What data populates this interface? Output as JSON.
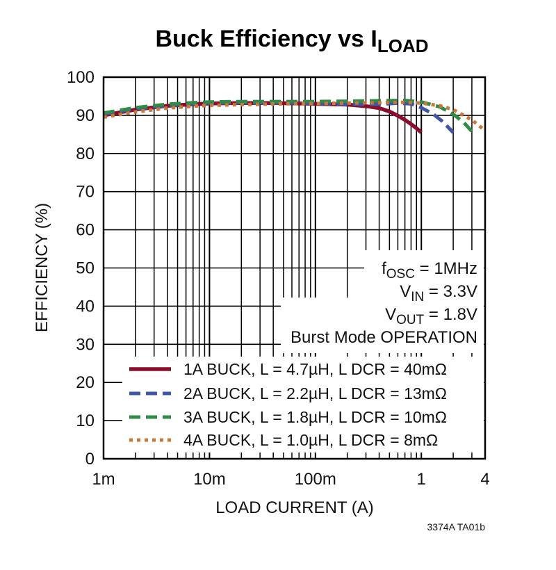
{
  "chart_data": {
    "type": "line",
    "title_main": "Buck Efficiency vs I",
    "title_sub": "LOAD",
    "xlabel": "LOAD CURRENT (A)",
    "ylabel": "EFFICIENCY (%)",
    "x_scale": "log",
    "xlim": [
      0.001,
      4
    ],
    "ylim": [
      0,
      100
    ],
    "grid": true,
    "x_ticks": [
      {
        "value": 0.001,
        "label": "1m"
      },
      {
        "value": 0.01,
        "label": "10m"
      },
      {
        "value": 0.1,
        "label": "100m"
      },
      {
        "value": 1,
        "label": "1"
      },
      {
        "value": 4,
        "label": "4"
      }
    ],
    "y_ticks": [
      {
        "value": 0,
        "label": "0"
      },
      {
        "value": 10,
        "label": "10"
      },
      {
        "value": 20,
        "label": "20"
      },
      {
        "value": 30,
        "label": "30"
      },
      {
        "value": 40,
        "label": "40"
      },
      {
        "value": 50,
        "label": "50"
      },
      {
        "value": 60,
        "label": "60"
      },
      {
        "value": 70,
        "label": "70"
      },
      {
        "value": 80,
        "label": "80"
      },
      {
        "value": 90,
        "label": "90"
      },
      {
        "value": 100,
        "label": "100"
      }
    ],
    "conditions": [
      {
        "main": "f",
        "sub": "OSC",
        "rest": " = 1MHz"
      },
      {
        "main": "V",
        "sub": "IN",
        "rest": " = 3.3V"
      },
      {
        "main": "V",
        "sub": "OUT",
        "rest": " = 1.8V"
      },
      {
        "main": "Burst Mode OPERATION",
        "sub": "",
        "rest": ""
      }
    ],
    "series": [
      {
        "name": "1A BUCK, L = 4.7µH, L DCR = 40mΩ",
        "color": "#8b0d2e",
        "style": "solid",
        "x": [
          0.001,
          0.002,
          0.004,
          0.007,
          0.01,
          0.02,
          0.04,
          0.07,
          0.1,
          0.2,
          0.3,
          0.4,
          0.5,
          0.6,
          0.7,
          0.8,
          0.9,
          1.0
        ],
        "y": [
          90.0,
          91.5,
          92.5,
          92.9,
          93.1,
          93.2,
          93.2,
          93.1,
          93.0,
          92.8,
          92.4,
          91.9,
          91.0,
          89.9,
          88.8,
          87.7,
          86.6,
          85.5
        ]
      },
      {
        "name": "2A BUCK, L = 2.2µH, L DCR = 13mΩ",
        "color": "#3f55a6",
        "style": "dash",
        "x": [
          0.001,
          0.002,
          0.004,
          0.007,
          0.01,
          0.02,
          0.05,
          0.1,
          0.2,
          0.4,
          0.6,
          0.8,
          1.0,
          1.3,
          1.6,
          2.0
        ],
        "y": [
          90.3,
          91.7,
          92.6,
          93.0,
          93.2,
          93.3,
          93.2,
          93.1,
          92.9,
          92.9,
          93.2,
          93.0,
          92.0,
          90.3,
          88.3,
          85.5
        ]
      },
      {
        "name": "3A BUCK, L = 1.8µH, L DCR = 10mΩ",
        "color": "#2f8b45",
        "style": "dash",
        "x": [
          0.001,
          0.002,
          0.004,
          0.007,
          0.01,
          0.02,
          0.05,
          0.1,
          0.2,
          0.4,
          0.7,
          1.0,
          1.5,
          2.0,
          2.5,
          3.0
        ],
        "y": [
          90.6,
          92.0,
          92.9,
          93.3,
          93.5,
          93.6,
          93.6,
          93.6,
          93.7,
          93.8,
          93.9,
          93.5,
          92.2,
          90.3,
          88.2,
          85.8
        ]
      },
      {
        "name": "4A BUCK, L = 1.0µH, L DCR = 8mΩ",
        "color": "#c8793a",
        "style": "dot",
        "x": [
          0.001,
          0.002,
          0.004,
          0.007,
          0.01,
          0.02,
          0.05,
          0.1,
          0.2,
          0.4,
          0.7,
          1.0,
          1.5,
          2.0,
          3.0,
          4.0
        ],
        "y": [
          89.5,
          90.9,
          91.9,
          92.4,
          92.6,
          92.8,
          93.0,
          93.1,
          93.2,
          93.3,
          93.4,
          93.2,
          92.5,
          91.5,
          88.8,
          86.0
        ]
      }
    ],
    "figure_code": "3374A TA01b"
  }
}
